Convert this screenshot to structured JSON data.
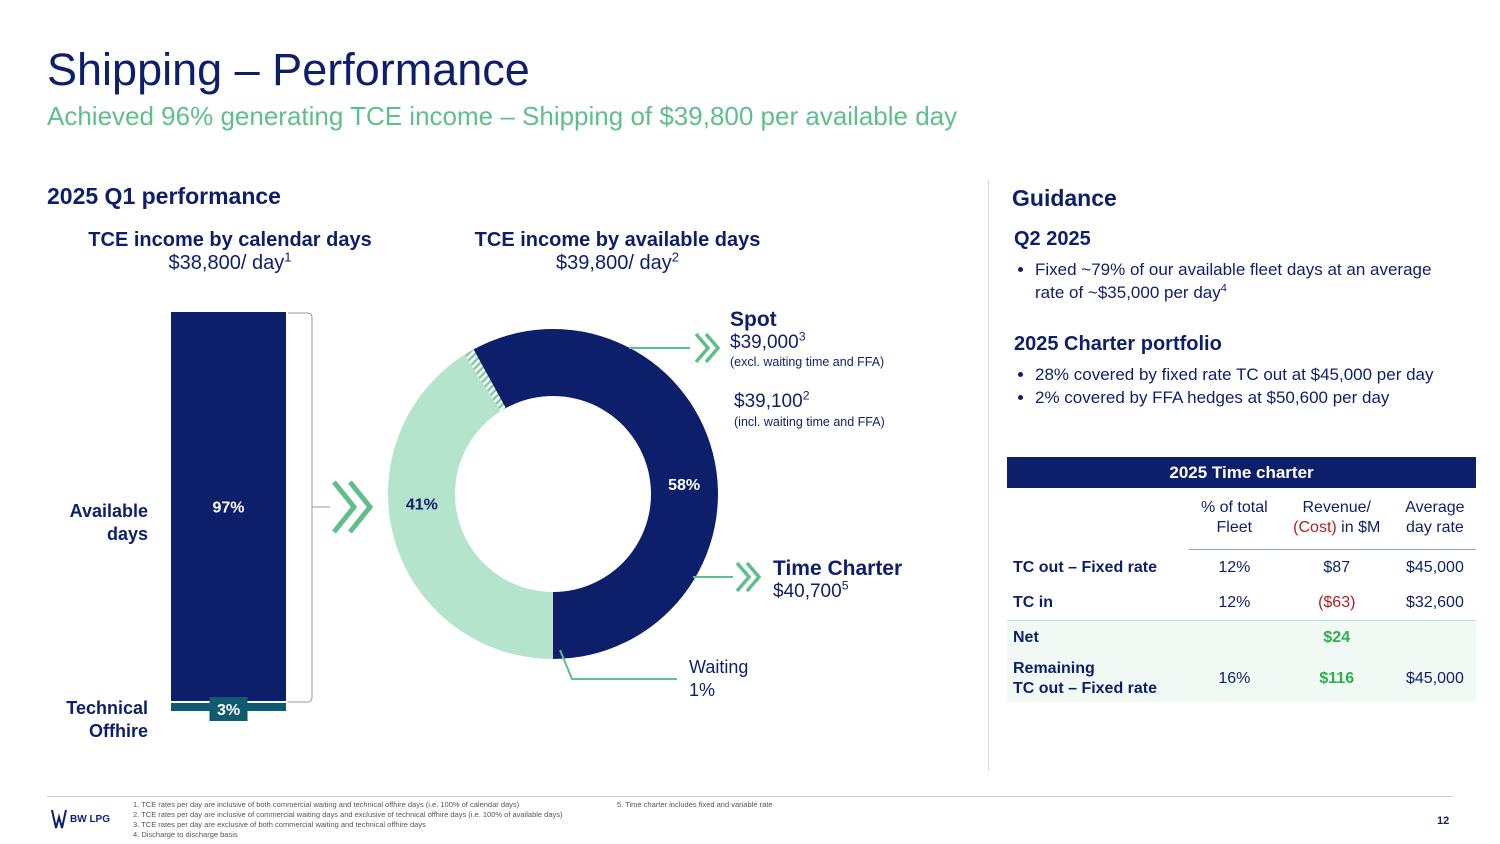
{
  "header": {
    "title": "Shipping – Performance",
    "subtitle": "Achieved 96% generating TCE income – Shipping of $39,800 per available day"
  },
  "left": {
    "section_title": "2025 Q1 performance",
    "calendar_title": "TCE income by calendar days",
    "calendar_value": "$38,800/ day",
    "calendar_sup": "1",
    "available_title": "TCE income by available days",
    "available_value": "$39,800/ day",
    "available_sup": "2",
    "label_available_1": "Available",
    "label_available_2": "days",
    "label_technical_1": "Technical",
    "label_technical_2": "Offhire",
    "spot_title": "Spot",
    "spot_value": "$39,000",
    "spot_sup": "3",
    "spot_note": "(excl. waiting time and FFA)",
    "spot_value2": "$39,100",
    "spot_sup2": "2",
    "spot_note2": "(incl. waiting time and FFA)",
    "tc_title": "Time Charter",
    "tc_value": "$40,700",
    "tc_sup": "5",
    "waiting_1": "Waiting",
    "waiting_2": "1%"
  },
  "chart_data": [
    {
      "type": "bar",
      "title": "TCE income by calendar days",
      "stacked": true,
      "categories": [
        "Available days",
        "Technical Offhire"
      ],
      "values": [
        97,
        3
      ],
      "data_labels": [
        "97%",
        "3%"
      ],
      "colors": [
        "#0d1f6b",
        "#125a6e"
      ]
    },
    {
      "type": "pie",
      "donut": true,
      "title": "TCE income by available days",
      "categories": [
        "Spot",
        "Time Charter",
        "Waiting"
      ],
      "values": [
        58,
        41,
        1
      ],
      "data_labels": [
        "58%",
        "41%",
        ""
      ],
      "colors": [
        "#0d1f6b",
        "#b5e4cc",
        "#7fcba3"
      ]
    }
  ],
  "guidance": {
    "title": "Guidance",
    "q2_title": "Q2 2025",
    "q2_bullet": "Fixed ~79% of our available fleet days at an average rate of ~$35,000 per day",
    "q2_sup": "4",
    "portfolio_title": "2025 Charter portfolio",
    "portfolio_bullets": [
      "28% covered by fixed rate TC out at $45,000 per day",
      "2% covered by FFA hedges at $50,600 per day"
    ]
  },
  "table": {
    "caption": "2025 Time charter",
    "col1_a": "% of total",
    "col1_b": "Fleet",
    "col2_a": "Revenue/",
    "col2_b_red": "(Cost)",
    "col2_b_rest": " in $M",
    "col3_a": "Average",
    "col3_b": "day rate",
    "rows": [
      {
        "label": "TC out – Fixed rate",
        "pct": "12%",
        "rev": "$87",
        "rate": "$45,000"
      },
      {
        "label": "TC in",
        "pct": "12%",
        "rev": "($63)",
        "rate": "$32,600"
      },
      {
        "label": "Net",
        "pct": "",
        "rev": "$24",
        "rate": ""
      },
      {
        "label_1": "Remaining",
        "label_2": "TC out – Fixed rate",
        "pct": "16%",
        "rev": "$116",
        "rate": "$45,000"
      }
    ]
  },
  "footer": {
    "logo": "BW LPG",
    "notes": [
      "1.   TCE rates per day are inclusive of both commercial waiting and technical offhire days (i.e. 100% of calendar days)",
      "2.   TCE rates per day are inclusive of commercial waiting days and exclusive of technical offhire days (i.e. 100% of available days)",
      "3.   TCE rates per day are exclusive of both commercial waiting and technical offhire days",
      "4.   Discharge to discharge basis"
    ],
    "note5": "5.   Time charter includes fixed and variable rate",
    "page": "12"
  },
  "colors": {
    "navy": "#0d1f6b",
    "mint": "#b5e4cc",
    "green_text": "#5fbf8a",
    "teal": "#125a6e"
  }
}
